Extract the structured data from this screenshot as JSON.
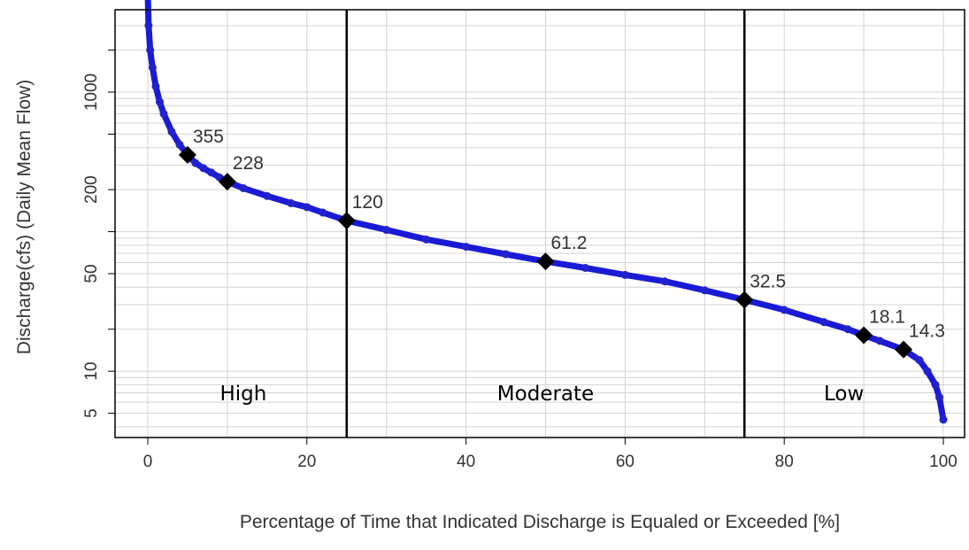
{
  "chart_data": {
    "type": "line",
    "title": "",
    "xlabel": "Percentage of Time that Indicated Discharge is Equaled or Exceeded [%]",
    "ylabel": "Discharge(cfs) (Daily Mean Flow)",
    "xlim": [
      -4,
      102
    ],
    "ylim": [
      3,
      7000
    ],
    "y_scale": "log",
    "grid": true,
    "x_ticks": [
      0,
      20,
      40,
      60,
      80,
      100
    ],
    "y_ticks": [
      5,
      10,
      50,
      200,
      1000
    ],
    "colors": {
      "series": "#1a1ad6",
      "markers": "#000000",
      "dividers": "#000000",
      "grid": "#d3d3d3"
    },
    "series": [
      {
        "values": [
          [
            0,
            5000
          ],
          [
            0.1,
            3000
          ],
          [
            0.3,
            2000
          ],
          [
            0.6,
            1500
          ],
          [
            1,
            1100
          ],
          [
            1.5,
            850
          ],
          [
            2,
            700
          ],
          [
            3,
            520
          ],
          [
            4,
            420
          ],
          [
            5,
            355
          ],
          [
            6,
            310
          ],
          [
            7,
            285
          ],
          [
            8,
            265
          ],
          [
            9,
            245
          ],
          [
            10,
            228
          ],
          [
            12,
            205
          ],
          [
            15,
            180
          ],
          [
            18,
            160
          ],
          [
            20,
            150
          ],
          [
            22,
            137
          ],
          [
            25,
            120
          ],
          [
            30,
            103
          ],
          [
            35,
            88
          ],
          [
            40,
            78
          ],
          [
            45,
            69
          ],
          [
            50,
            61.2
          ],
          [
            55,
            55
          ],
          [
            60,
            49
          ],
          [
            65,
            44
          ],
          [
            70,
            38
          ],
          [
            75,
            32.5
          ],
          [
            80,
            27.5
          ],
          [
            85,
            22.5
          ],
          [
            88,
            20
          ],
          [
            90,
            18.1
          ],
          [
            92,
            16.5
          ],
          [
            95,
            14.3
          ],
          [
            97,
            12
          ],
          [
            98,
            10
          ],
          [
            99,
            8
          ],
          [
            99.5,
            6.5
          ],
          [
            100,
            4.5
          ]
        ]
      }
    ],
    "labeled_points": [
      {
        "x": 5,
        "y": 355,
        "label": "355"
      },
      {
        "x": 10,
        "y": 228,
        "label": "228"
      },
      {
        "x": 25,
        "y": 120,
        "label": "120"
      },
      {
        "x": 50,
        "y": 61.2,
        "label": "61.2"
      },
      {
        "x": 75,
        "y": 32.5,
        "label": "32.5"
      },
      {
        "x": 90,
        "y": 18.1,
        "label": "18.1"
      },
      {
        "x": 95,
        "y": 14.3,
        "label": "14.3"
      }
    ],
    "dividers": [
      25,
      75
    ],
    "zones": [
      {
        "label": "High",
        "x": 12
      },
      {
        "label": "Moderate",
        "x": 50
      },
      {
        "label": "Low",
        "x": 87.5
      }
    ]
  }
}
